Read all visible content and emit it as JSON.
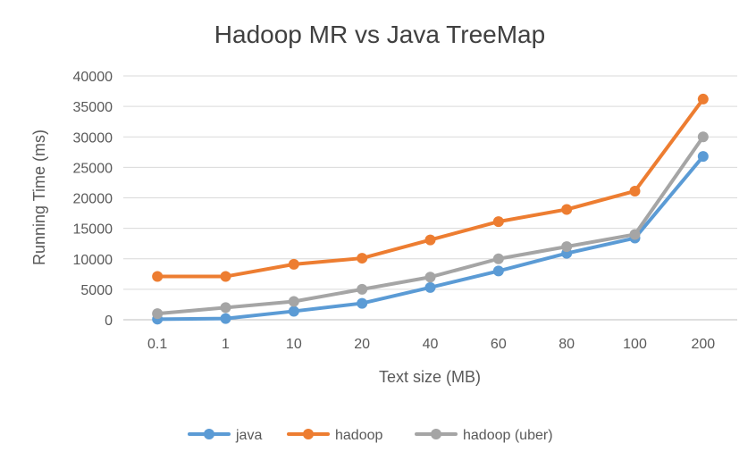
{
  "chart_data": {
    "type": "line",
    "title": "Hadoop MR vs Java TreeMap",
    "xlabel": "Text size (MB)",
    "ylabel": "Running Time (ms)",
    "categories": [
      "0.1",
      "1",
      "10",
      "20",
      "40",
      "60",
      "80",
      "100",
      "200"
    ],
    "ylim": [
      0,
      40000
    ],
    "yticks": [
      "0",
      "5000",
      "10000",
      "15000",
      "20000",
      "25000",
      "30000",
      "35000",
      "40000"
    ],
    "grid": true,
    "legend": "bottom",
    "series": [
      {
        "name": "java",
        "color": "#5b9bd5",
        "values": [
          100,
          200,
          1400,
          2700,
          5300,
          8000,
          10900,
          13400,
          26800
        ]
      },
      {
        "name": "hadoop",
        "color": "#ed7d31",
        "values": [
          7100,
          7100,
          9100,
          10100,
          13100,
          16100,
          18100,
          21100,
          36200
        ]
      },
      {
        "name": "hadoop (uber)",
        "color": "#a5a5a5",
        "values": [
          1000,
          2000,
          3000,
          5000,
          7000,
          10000,
          12000,
          14000,
          30000
        ]
      }
    ]
  }
}
